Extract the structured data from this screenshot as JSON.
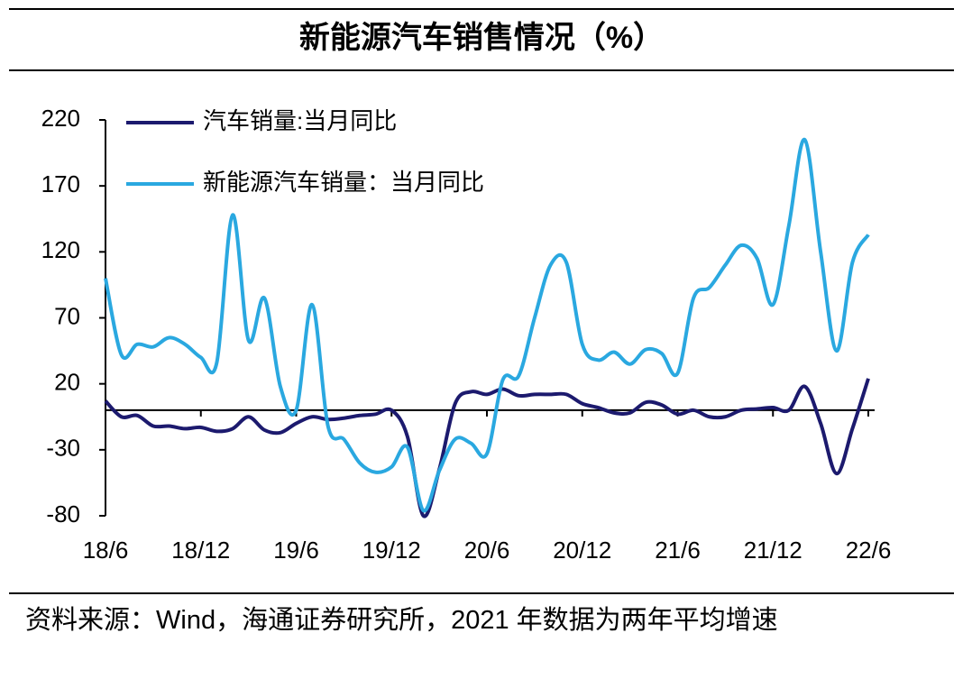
{
  "chart_data": {
    "type": "line",
    "title": "新能源汽车销售情况（%）",
    "source": "资料来源：Wind，海通证券研究所，2021 年数据为两年平均增速",
    "categories": [
      "18/6",
      null,
      null,
      null,
      null,
      null,
      "18/12",
      null,
      null,
      null,
      null,
      null,
      "19/6",
      null,
      null,
      null,
      null,
      null,
      "19/12",
      null,
      null,
      null,
      null,
      null,
      "20/6",
      null,
      null,
      null,
      null,
      null,
      "20/12",
      null,
      null,
      null,
      null,
      null,
      "21/6",
      null,
      null,
      null,
      null,
      null,
      "21/12",
      null,
      null,
      null,
      null,
      null,
      "22/6"
    ],
    "series": [
      {
        "name": "汽车销量:当月同比",
        "color": "#1c1a6e",
        "values": [
          7,
          -5,
          -4,
          -12,
          -12,
          -14,
          -13,
          -16,
          -14,
          -5,
          -15,
          -17,
          -10,
          -5,
          -7,
          -6,
          -4,
          -3,
          0,
          -20,
          -80,
          -45,
          5,
          14,
          12,
          16,
          11,
          12,
          12,
          12,
          5,
          2,
          -2,
          -2,
          6,
          4,
          -3,
          0,
          -5,
          -5,
          0,
          1,
          2,
          0,
          18,
          -10,
          -48,
          -14,
          24
        ]
      },
      {
        "name": "新能源汽车销量：当月同比",
        "color": "#2aa8e0",
        "values": [
          100,
          42,
          50,
          48,
          55,
          50,
          40,
          36,
          148,
          53,
          85,
          18,
          0,
          80,
          -12,
          -22,
          -40,
          -47,
          -43,
          -28,
          -76,
          -46,
          -22,
          -25,
          -33,
          23,
          26,
          70,
          110,
          112,
          50,
          38,
          44,
          35,
          46,
          43,
          28,
          85,
          93,
          110,
          125,
          115,
          80,
          140,
          205,
          120,
          45,
          112,
          133
        ]
      }
    ],
    "ylim": [
      -80,
      220
    ],
    "yticks": [
      -80,
      -30,
      20,
      70,
      120,
      170,
      220
    ],
    "legend": "upper left"
  }
}
